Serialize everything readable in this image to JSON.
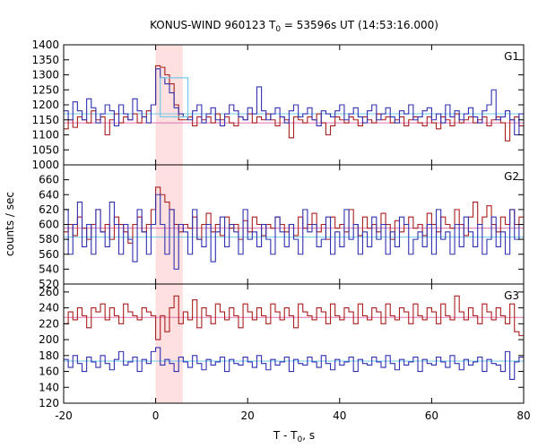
{
  "chart_data": {
    "type": "line",
    "title": "KONUS-WIND 960123 T",
    "title_sub": "0",
    "title_rest": " = 53596s UT (14:53:16.000)",
    "xlabel": "T - T",
    "xlabel_sub": "0",
    "xlabel_rest": ", s",
    "ylabel": "counts / sec",
    "xlim": [
      -20,
      80
    ],
    "x_ticks": [
      "-20",
      "0",
      "20",
      "40",
      "60",
      "80"
    ],
    "x_tick_values": [
      -20,
      0,
      20,
      40,
      60,
      80
    ],
    "highlight_interval": [
      0,
      5.9
    ],
    "colors": {
      "dark_red": "#aa1e1e",
      "blue": "#3030b0",
      "pink": "#e070b0",
      "light_blue": "#70c8e8",
      "highlight": "#ffe0e0"
    },
    "panels": [
      {
        "label": "G1",
        "ylim": [
          1000,
          1400
        ],
        "y_ticks": [
          "1000",
          "1050",
          "1100",
          "1150",
          "1200",
          "1250",
          "1300",
          "1350",
          "1400"
        ],
        "y_tick_values": [
          1000,
          1050,
          1100,
          1150,
          1200,
          1250,
          1300,
          1350,
          1400
        ],
        "series": [
          {
            "color": "dark_red",
            "background": 1140,
            "values": [
              1120,
              1150,
              1125,
              1160,
              1150,
              1140,
              1180,
              1150,
              1160,
              1100,
              1150,
              1170,
              1140,
              1160,
              1150,
              1170,
              1140,
              1160,
              1180,
              1200,
              1330,
              1325,
              1300,
              1270,
              1200,
              1150,
              1150,
              1160,
              1130,
              1160,
              1150,
              1160,
              1140,
              1170,
              1150,
              1160,
              1140,
              1130,
              1160,
              1150,
              1170,
              1140,
              1160,
              1150,
              1170,
              1150,
              1130,
              1160,
              1150,
              1090,
              1160,
              1150,
              1140,
              1160,
              1150,
              1170,
              1140,
              1100,
              1130,
              1160,
              1150,
              1140,
              1160,
              1150,
              1130,
              1160,
              1150,
              1140,
              1170,
              1150,
              1160,
              1140,
              1150,
              1160,
              1130,
              1150,
              1160,
              1140,
              1130,
              1160,
              1140,
              1120,
              1160,
              1150,
              1130,
              1170,
              1140,
              1150,
              1160,
              1140,
              1150,
              1160,
              1130,
              1150,
              1160,
              1140,
              1080,
              1150,
              1160,
              1130
            ]
          },
          {
            "color": "blue",
            "background": 1170,
            "values": [
              1180,
              1150,
              1210,
              1180,
              1150,
              1220,
              1190,
              1140,
              1170,
              1200,
              1180,
              1130,
              1200,
              1170,
              1150,
              1220,
              1180,
              1160,
              1140,
              1200,
              1320,
              1290,
              1270,
              1240,
              1190,
              1170,
              1160,
              1150,
              1180,
              1200,
              1140,
              1170,
              1190,
              1150,
              1130,
              1170,
              1200,
              1180,
              1160,
              1150,
              1190,
              1170,
              1260,
              1180,
              1150,
              1170,
              1190,
              1160,
              1140,
              1180,
              1200,
              1160,
              1170,
              1190,
              1150,
              1130,
              1180,
              1170,
              1160,
              1180,
              1200,
              1150,
              1170,
              1190,
              1160,
              1140,
              1180,
              1200,
              1150,
              1170,
              1190,
              1160,
              1140,
              1180,
              1170,
              1200,
              1150,
              1160,
              1180,
              1190,
              1150,
              1170,
              1140,
              1200,
              1160,
              1180,
              1150,
              1170,
              1190,
              1160,
              1140,
              1180,
              1200,
              1250,
              1150,
              1160,
              1180,
              1150,
              1100,
              1170
            ]
          }
        ],
        "overlay_box": {
          "x": [
            1,
            7
          ],
          "y": [
            1160,
            1290
          ]
        }
      },
      {
        "label": "G2",
        "ylim": [
          520,
          680
        ],
        "y_ticks": [
          "520",
          "540",
          "560",
          "580",
          "600",
          "620",
          "640",
          "660"
        ],
        "y_tick_values": [
          520,
          540,
          560,
          580,
          600,
          620,
          640,
          660
        ],
        "series": [
          {
            "color": "dark_red",
            "background": 595,
            "values": [
              590,
              600,
              585,
              610,
              595,
              580,
              600,
              620,
              590,
              600,
              580,
              610,
              600,
              590,
              575,
              600,
              610,
              590,
              600,
              620,
              650,
              640,
              630,
              620,
              600,
              590,
              600,
              595,
              610,
              580,
              600,
              615,
              590,
              600,
              585,
              610,
              595,
              600,
              580,
              605,
              590,
              610,
              600,
              585,
              600,
              595,
              610,
              600,
              590,
              600,
              585,
              610,
              595,
              600,
              615,
              590,
              600,
              580,
              610,
              595,
              600,
              590,
              620,
              600,
              585,
              610,
              595,
              600,
              590,
              615,
              600,
              580,
              605,
              590,
              600,
              610,
              595,
              600,
              585,
              615,
              600,
              590,
              610,
              600,
              595,
              620,
              600,
              585,
              610,
              630,
              600,
              610,
              625,
              600,
              590,
              610,
              600,
              620,
              600,
              610
            ]
          },
          {
            "color": "blue",
            "background": 583,
            "values": [
              620,
              560,
              600,
              630,
              570,
              600,
              560,
              620,
              590,
              570,
              630,
              600,
              560,
              600,
              580,
              550,
              620,
              590,
              560,
              600,
              640,
              600,
              560,
              620,
              540,
              600,
              590,
              560,
              620,
              580,
              570,
              600,
              550,
              590,
              610,
              570,
              600,
              590,
              560,
              620,
              580,
              590,
              570,
              600,
              580,
              560,
              610,
              590,
              570,
              600,
              580,
              560,
              620,
              590,
              600,
              570,
              580,
              610,
              560,
              590,
              570,
              620,
              580,
              600,
              560,
              590,
              570,
              610,
              580,
              600,
              560,
              590,
              570,
              610,
              600,
              560,
              580,
              590,
              570,
              600,
              560,
              620,
              580,
              590,
              560,
              600,
              570,
              610,
              590,
              570,
              600,
              560,
              580,
              610,
              570,
              590,
              560,
              620,
              580,
              600
            ]
          }
        ]
      },
      {
        "label": "G3",
        "ylim": [
          120,
          270
        ],
        "y_ticks": [
          "120",
          "140",
          "160",
          "180",
          "200",
          "220",
          "240",
          "260"
        ],
        "y_tick_values": [
          120,
          140,
          160,
          180,
          200,
          220,
          240,
          260
        ],
        "series": [
          {
            "color": "dark_red",
            "background": 228,
            "values": [
              220,
              235,
              225,
              240,
              230,
              215,
              240,
              235,
              245,
              225,
              240,
              230,
              220,
              245,
              235,
              230,
              225,
              240,
              235,
              230,
              200,
              230,
              210,
              240,
              255,
              220,
              235,
              225,
              250,
              215,
              240,
              230,
              220,
              245,
              235,
              225,
              240,
              230,
              215,
              245,
              235,
              225,
              240,
              230,
              220,
              245,
              235,
              225,
              240,
              230,
              215,
              245,
              235,
              230,
              225,
              240,
              235,
              220,
              245,
              230,
              225,
              240,
              235,
              220,
              245,
              230,
              225,
              240,
              235,
              220,
              245,
              230,
              225,
              240,
              235,
              220,
              245,
              230,
              225,
              240,
              235,
              220,
              245,
              230,
              225,
              255,
              235,
              225,
              240,
              230,
              220,
              245,
              235,
              225,
              240,
              230,
              220,
              245,
              210,
              205
            ]
          },
          {
            "color": "blue",
            "background": 173,
            "values": [
              175,
              165,
              180,
              170,
              160,
              178,
              172,
              165,
              180,
              170,
              162,
              175,
              185,
              168,
              172,
              178,
              160,
              175,
              170,
              185,
              190,
              168,
              175,
              170,
              160,
              178,
              172,
              165,
              180,
              170,
              162,
              175,
              168,
              172,
              178,
              160,
              175,
              170,
              168,
              178,
              172,
              165,
              180,
              170,
              162,
              175,
              168,
              172,
              178,
              160,
              175,
              170,
              168,
              178,
              172,
              165,
              180,
              170,
              162,
              175,
              168,
              172,
              178,
              160,
              175,
              170,
              168,
              178,
              172,
              165,
              180,
              170,
              162,
              175,
              168,
              172,
              178,
              160,
              175,
              170,
              168,
              178,
              172,
              165,
              180,
              170,
              162,
              175,
              168,
              172,
              178,
              160,
              175,
              170,
              168,
              160,
              185,
              150,
              172,
              178
            ]
          }
        ]
      }
    ]
  }
}
